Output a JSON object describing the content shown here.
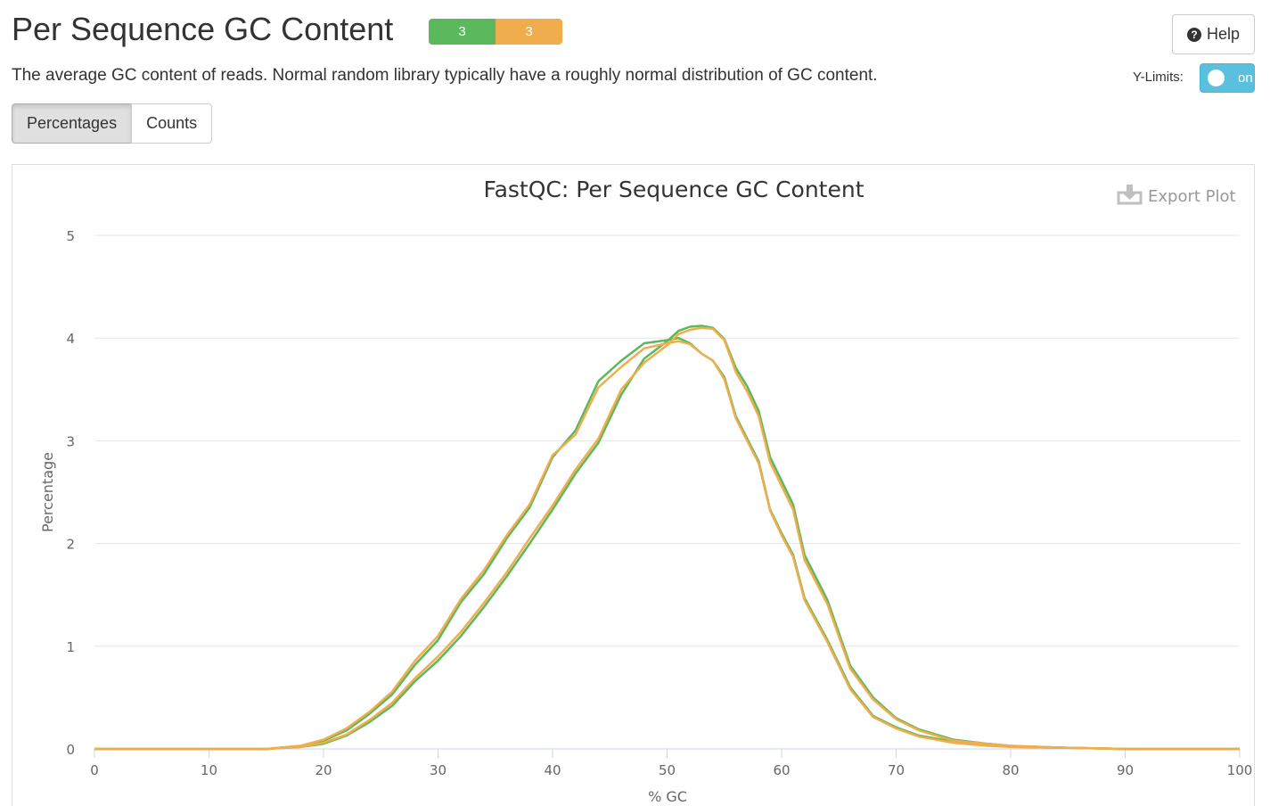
{
  "header": {
    "title": "Per Sequence GC Content",
    "description": "The average GC content of reads. Normal random library typically have a roughly normal distribution of GC content."
  },
  "status": {
    "pass": {
      "count": "3",
      "color": "#5cb85c"
    },
    "warn": {
      "count": "3",
      "color": "#f0ad4e"
    }
  },
  "help_button": {
    "label": "Help",
    "icon": "question-circle-icon"
  },
  "ylimits": {
    "label": "Y-Limits:",
    "toggle_text": "on"
  },
  "tabs": [
    {
      "label": "Percentages",
      "active": true
    },
    {
      "label": "Counts",
      "active": false
    }
  ],
  "export_plot": {
    "label": "Export Plot",
    "icon": "download-icon"
  },
  "chart_data": {
    "type": "line",
    "title": "FastQC: Per Sequence GC Content",
    "xlabel": "% GC",
    "ylabel": "Percentage",
    "xlim": [
      0,
      100
    ],
    "ylim": [
      0,
      5
    ],
    "xticks": [
      0,
      10,
      20,
      30,
      40,
      50,
      60,
      70,
      80,
      90,
      100
    ],
    "yticks": [
      0,
      1,
      2,
      3,
      4,
      5
    ],
    "grid": true,
    "legend": "none",
    "series": [
      {
        "color": "#5cb85c",
        "x": [
          0,
          15,
          18,
          20,
          22,
          24,
          26,
          28,
          30,
          32,
          34,
          36,
          38,
          40,
          42,
          44,
          46,
          48,
          50,
          51,
          52,
          53,
          54,
          55,
          56,
          57,
          58,
          59,
          60,
          61,
          62,
          64,
          66,
          68,
          70,
          72,
          75,
          78,
          80,
          85,
          90,
          100
        ],
        "y": [
          0,
          0,
          0.02,
          0.05,
          0.13,
          0.26,
          0.42,
          0.66,
          0.86,
          1.1,
          1.38,
          1.68,
          2.0,
          2.33,
          2.68,
          2.98,
          3.45,
          3.8,
          3.97,
          4.07,
          4.11,
          4.12,
          4.1,
          3.99,
          3.71,
          3.53,
          3.29,
          2.84,
          2.61,
          2.38,
          1.89,
          1.45,
          0.81,
          0.5,
          0.3,
          0.19,
          0.09,
          0.05,
          0.03,
          0.01,
          0,
          0
        ]
      },
      {
        "color": "#5cb85c",
        "x": [
          0,
          15,
          18,
          20,
          22,
          24,
          26,
          28,
          30,
          32,
          34,
          36,
          38,
          40,
          42,
          44,
          46,
          48,
          50,
          51,
          52,
          53,
          54,
          55,
          56,
          57,
          58,
          59,
          60,
          61,
          62,
          64,
          66,
          68,
          70,
          72,
          75,
          78,
          80,
          85,
          90,
          100
        ],
        "y": [
          0,
          0,
          0.03,
          0.08,
          0.18,
          0.34,
          0.53,
          0.82,
          1.06,
          1.43,
          1.7,
          2.05,
          2.35,
          2.84,
          3.1,
          3.58,
          3.78,
          3.95,
          3.98,
          4.0,
          3.95,
          3.85,
          3.78,
          3.62,
          3.24,
          3.02,
          2.8,
          2.33,
          2.1,
          1.89,
          1.47,
          1.06,
          0.6,
          0.32,
          0.21,
          0.13,
          0.07,
          0.04,
          0.02,
          0.01,
          0,
          0
        ]
      },
      {
        "color": "#f0ad4e",
        "x": [
          0,
          15,
          18,
          20,
          22,
          24,
          26,
          28,
          30,
          32,
          34,
          36,
          38,
          40,
          42,
          44,
          46,
          48,
          50,
          51,
          52,
          53,
          54,
          55,
          56,
          57,
          58,
          59,
          60,
          61,
          62,
          64,
          66,
          68,
          70,
          72,
          75,
          78,
          80,
          85,
          90,
          100
        ],
        "y": [
          0,
          0,
          0.02,
          0.06,
          0.14,
          0.28,
          0.45,
          0.69,
          0.9,
          1.14,
          1.42,
          1.72,
          2.05,
          2.37,
          2.72,
          3.02,
          3.5,
          3.76,
          3.93,
          4.04,
          4.08,
          4.1,
          4.09,
          3.98,
          3.67,
          3.48,
          3.24,
          2.79,
          2.56,
          2.33,
          1.84,
          1.41,
          0.78,
          0.48,
          0.29,
          0.18,
          0.08,
          0.05,
          0.03,
          0.01,
          0,
          0
        ]
      },
      {
        "color": "#f0ad4e",
        "x": [
          0,
          15,
          18,
          20,
          22,
          24,
          26,
          28,
          30,
          32,
          34,
          36,
          38,
          40,
          42,
          44,
          46,
          48,
          50,
          51,
          52,
          53,
          54,
          55,
          56,
          57,
          58,
          59,
          60,
          61,
          62,
          64,
          66,
          68,
          70,
          72,
          75,
          78,
          80,
          85,
          90,
          100
        ],
        "y": [
          0,
          0,
          0.03,
          0.09,
          0.2,
          0.36,
          0.56,
          0.86,
          1.1,
          1.46,
          1.74,
          2.08,
          2.38,
          2.86,
          3.06,
          3.52,
          3.72,
          3.9,
          3.95,
          3.97,
          3.94,
          3.85,
          3.78,
          3.6,
          3.22,
          3.0,
          2.78,
          2.32,
          2.08,
          1.87,
          1.45,
          1.04,
          0.58,
          0.31,
          0.2,
          0.12,
          0.06,
          0.03,
          0.02,
          0.01,
          0,
          0
        ]
      }
    ]
  }
}
